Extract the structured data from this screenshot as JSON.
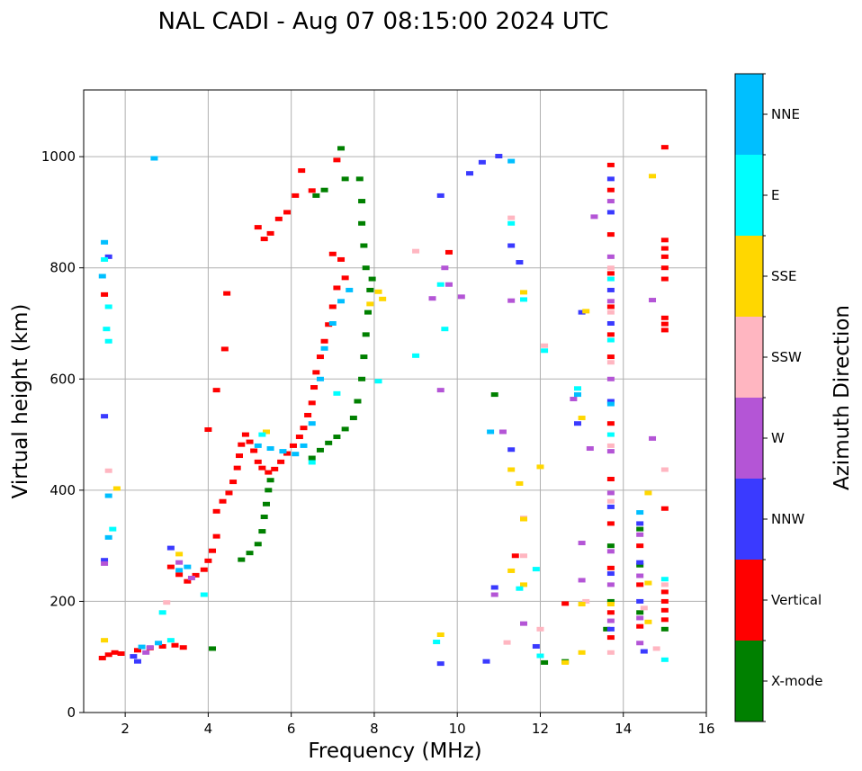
{
  "chart_data": {
    "type": "scatter",
    "title": "NAL CADI - Aug 07 08:15:00 2024 UTC",
    "xlabel": "Frequency (MHz)",
    "ylabel": "Virtual height (km)",
    "xlim": [
      1,
      16
    ],
    "ylim": [
      0,
      1120
    ],
    "xticks": [
      2,
      4,
      6,
      8,
      10,
      12,
      14,
      16
    ],
    "yticks": [
      0,
      200,
      400,
      600,
      800,
      1000
    ],
    "grid": true,
    "colorbar": {
      "label": "Azimuth Direction",
      "position": "right",
      "categories": [
        {
          "name": "X-mode",
          "color": "#008000"
        },
        {
          "name": "Vertical",
          "color": "#ff0000"
        },
        {
          "name": "NNW",
          "color": "#3a3aff"
        },
        {
          "name": "W",
          "color": "#b455d6"
        },
        {
          "name": "SSW",
          "color": "#ffb6c1"
        },
        {
          "name": "SSE",
          "color": "#ffd700"
        },
        {
          "name": "E",
          "color": "#00ffff"
        },
        {
          "name": "NNE",
          "color": "#00bfff"
        }
      ]
    },
    "series": [
      {
        "name": "Vertical",
        "points": [
          [
            1.45,
            98
          ],
          [
            1.6,
            104
          ],
          [
            1.75,
            108
          ],
          [
            1.9,
            106
          ],
          [
            2.3,
            112
          ],
          [
            2.6,
            116
          ],
          [
            2.9,
            119
          ],
          [
            3.2,
            121
          ],
          [
            3.4,
            117
          ],
          [
            1.5,
            752
          ],
          [
            3.1,
            262
          ],
          [
            3.3,
            248
          ],
          [
            3.5,
            236
          ],
          [
            3.7,
            247
          ],
          [
            3.9,
            257
          ],
          [
            4.0,
            273
          ],
          [
            4.1,
            291
          ],
          [
            4.2,
            317
          ],
          [
            4.2,
            362
          ],
          [
            4.35,
            380
          ],
          [
            4.5,
            395
          ],
          [
            4.6,
            415
          ],
          [
            4.7,
            440
          ],
          [
            4.75,
            462
          ],
          [
            4.8,
            482
          ],
          [
            4.9,
            500
          ],
          [
            5.0,
            487
          ],
          [
            5.1,
            471
          ],
          [
            5.2,
            451
          ],
          [
            5.3,
            440
          ],
          [
            5.45,
            432
          ],
          [
            5.6,
            438
          ],
          [
            5.75,
            451
          ],
          [
            5.9,
            466
          ],
          [
            6.05,
            480
          ],
          [
            6.2,
            496
          ],
          [
            6.3,
            512
          ],
          [
            6.4,
            535
          ],
          [
            6.5,
            557
          ],
          [
            6.55,
            585
          ],
          [
            6.6,
            612
          ],
          [
            6.7,
            640
          ],
          [
            6.8,
            668
          ],
          [
            6.9,
            698
          ],
          [
            7.0,
            730
          ],
          [
            7.1,
            764
          ],
          [
            7.0,
            825
          ],
          [
            7.2,
            815
          ],
          [
            7.3,
            782
          ],
          [
            7.1,
            994
          ],
          [
            5.2,
            873
          ],
          [
            5.35,
            852
          ],
          [
            5.5,
            862
          ],
          [
            5.7,
            888
          ],
          [
            5.9,
            900
          ],
          [
            6.1,
            930
          ],
          [
            6.25,
            975
          ],
          [
            6.5,
            939
          ],
          [
            4.0,
            509
          ],
          [
            4.2,
            580
          ],
          [
            4.4,
            654
          ],
          [
            4.45,
            754
          ],
          [
            11.4,
            282
          ],
          [
            12.6,
            196
          ],
          [
            13.7,
            135
          ],
          [
            13.7,
            180
          ],
          [
            13.7,
            260
          ],
          [
            13.7,
            340
          ],
          [
            13.7,
            420
          ],
          [
            13.7,
            520
          ],
          [
            13.7,
            640
          ],
          [
            13.7,
            680
          ],
          [
            13.7,
            730
          ],
          [
            13.7,
            790
          ],
          [
            13.7,
            860
          ],
          [
            13.7,
            940
          ],
          [
            13.7,
            985
          ],
          [
            14.4,
            155
          ],
          [
            14.4,
            230
          ],
          [
            14.4,
            300
          ],
          [
            15.0,
            167
          ],
          [
            15.0,
            184
          ],
          [
            15.0,
            200
          ],
          [
            15.0,
            217
          ],
          [
            15.0,
            367
          ],
          [
            15.0,
            688
          ],
          [
            15.0,
            699
          ],
          [
            15.0,
            710
          ],
          [
            15.0,
            780
          ],
          [
            15.0,
            800
          ],
          [
            15.0,
            820
          ],
          [
            15.0,
            835
          ],
          [
            15.0,
            850
          ],
          [
            15.0,
            1017
          ],
          [
            9.8,
            828
          ]
        ]
      },
      {
        "name": "X-mode",
        "points": [
          [
            4.1,
            115
          ],
          [
            4.8,
            275
          ],
          [
            5.0,
            287
          ],
          [
            5.2,
            303
          ],
          [
            5.3,
            326
          ],
          [
            5.35,
            352
          ],
          [
            5.4,
            375
          ],
          [
            5.45,
            400
          ],
          [
            5.5,
            418
          ],
          [
            6.5,
            458
          ],
          [
            6.7,
            472
          ],
          [
            6.9,
            485
          ],
          [
            7.1,
            496
          ],
          [
            7.3,
            510
          ],
          [
            7.5,
            530
          ],
          [
            7.6,
            560
          ],
          [
            7.7,
            600
          ],
          [
            7.75,
            640
          ],
          [
            7.8,
            680
          ],
          [
            7.85,
            720
          ],
          [
            7.9,
            760
          ],
          [
            7.95,
            780
          ],
          [
            7.8,
            800
          ],
          [
            7.75,
            840
          ],
          [
            7.7,
            880
          ],
          [
            7.7,
            920
          ],
          [
            7.65,
            960
          ],
          [
            7.2,
            1015
          ],
          [
            6.6,
            930
          ],
          [
            6.8,
            940
          ],
          [
            7.3,
            960
          ],
          [
            12.1,
            90
          ],
          [
            12.6,
            92
          ],
          [
            13.6,
            150
          ],
          [
            13.7,
            200
          ],
          [
            13.7,
            300
          ],
          [
            14.4,
            180
          ],
          [
            14.4,
            265
          ],
          [
            14.4,
            330
          ],
          [
            15.0,
            150
          ],
          [
            10.9,
            572
          ]
        ]
      },
      {
        "name": "NNW",
        "points": [
          [
            1.5,
            274
          ],
          [
            1.5,
            533
          ],
          [
            1.6,
            820
          ],
          [
            2.3,
            92
          ],
          [
            2.2,
            101
          ],
          [
            3.1,
            296
          ],
          [
            9.6,
            88
          ],
          [
            9.6,
            930
          ],
          [
            10.7,
            92
          ],
          [
            10.9,
            225
          ],
          [
            11.0,
            1001
          ],
          [
            11.3,
            473
          ],
          [
            11.3,
            840
          ],
          [
            11.5,
            810
          ],
          [
            11.9,
            119
          ],
          [
            12.9,
            520
          ],
          [
            13.0,
            720
          ],
          [
            13.7,
            150
          ],
          [
            13.7,
            250
          ],
          [
            13.7,
            370
          ],
          [
            13.7,
            560
          ],
          [
            13.7,
            700
          ],
          [
            13.7,
            760
          ],
          [
            13.7,
            900
          ],
          [
            13.7,
            960
          ],
          [
            14.4,
            200
          ],
          [
            14.4,
            270
          ],
          [
            14.4,
            340
          ],
          [
            14.5,
            110
          ],
          [
            10.3,
            970
          ],
          [
            10.6,
            990
          ]
        ]
      },
      {
        "name": "W",
        "points": [
          [
            1.5,
            268
          ],
          [
            2.5,
            108
          ],
          [
            2.6,
            117
          ],
          [
            3.3,
            270
          ],
          [
            3.6,
            242
          ],
          [
            9.6,
            580
          ],
          [
            9.7,
            800
          ],
          [
            9.8,
            770
          ],
          [
            10.1,
            748
          ],
          [
            10.9,
            212
          ],
          [
            11.1,
            505
          ],
          [
            11.3,
            741
          ],
          [
            11.6,
            160
          ],
          [
            12.8,
            564
          ],
          [
            13.0,
            238
          ],
          [
            13.0,
            305
          ],
          [
            13.2,
            475
          ],
          [
            13.3,
            892
          ],
          [
            13.7,
            165
          ],
          [
            13.7,
            230
          ],
          [
            13.7,
            290
          ],
          [
            13.7,
            395
          ],
          [
            13.7,
            470
          ],
          [
            13.7,
            600
          ],
          [
            13.7,
            740
          ],
          [
            13.7,
            820
          ],
          [
            13.7,
            920
          ],
          [
            14.4,
            125
          ],
          [
            14.4,
            170
          ],
          [
            14.4,
            246
          ],
          [
            14.4,
            320
          ],
          [
            14.7,
            493
          ],
          [
            14.7,
            742
          ],
          [
            9.4,
            745
          ]
        ]
      },
      {
        "name": "SSW",
        "points": [
          [
            1.6,
            435
          ],
          [
            3.0,
            198
          ],
          [
            9.0,
            830
          ],
          [
            11.2,
            126
          ],
          [
            11.3,
            890
          ],
          [
            11.6,
            282
          ],
          [
            12.0,
            150
          ],
          [
            12.1,
            660
          ],
          [
            13.1,
            200
          ],
          [
            13.7,
            108
          ],
          [
            13.7,
            380
          ],
          [
            13.7,
            480
          ],
          [
            13.7,
            630
          ],
          [
            13.7,
            720
          ],
          [
            13.7,
            800
          ],
          [
            14.5,
            188
          ],
          [
            14.8,
            115
          ],
          [
            15.0,
            437
          ],
          [
            15.0,
            230
          ],
          [
            11.6,
            350
          ]
        ]
      },
      {
        "name": "SSE",
        "points": [
          [
            1.5,
            130
          ],
          [
            1.8,
            403
          ],
          [
            3.3,
            285
          ],
          [
            9.6,
            140
          ],
          [
            11.3,
            255
          ],
          [
            11.3,
            437
          ],
          [
            11.5,
            412
          ],
          [
            11.6,
            348
          ],
          [
            11.6,
            230
          ],
          [
            11.6,
            756
          ],
          [
            12.0,
            442
          ],
          [
            12.6,
            90
          ],
          [
            13.0,
            108
          ],
          [
            13.0,
            195
          ],
          [
            13.0,
            530
          ],
          [
            13.1,
            722
          ],
          [
            13.7,
            195
          ],
          [
            14.6,
            163
          ],
          [
            14.6,
            233
          ],
          [
            14.6,
            395
          ],
          [
            14.7,
            965
          ],
          [
            8.1,
            757
          ],
          [
            8.2,
            744
          ],
          [
            5.4,
            505
          ],
          [
            7.9,
            735
          ]
        ]
      },
      {
        "name": "E",
        "points": [
          [
            1.5,
            815
          ],
          [
            1.55,
            690
          ],
          [
            1.6,
            668
          ],
          [
            1.6,
            730
          ],
          [
            1.7,
            330
          ],
          [
            2.9,
            180
          ],
          [
            3.1,
            130
          ],
          [
            3.9,
            212
          ],
          [
            9.5,
            127
          ],
          [
            9.0,
            642
          ],
          [
            9.6,
            770
          ],
          [
            9.7,
            690
          ],
          [
            11.3,
            880
          ],
          [
            11.5,
            223
          ],
          [
            11.6,
            743
          ],
          [
            11.9,
            258
          ],
          [
            12.0,
            102
          ],
          [
            12.1,
            651
          ],
          [
            12.9,
            583
          ],
          [
            13.7,
            500
          ],
          [
            13.7,
            670
          ],
          [
            13.7,
            780
          ],
          [
            15.0,
            95
          ],
          [
            15.0,
            240
          ],
          [
            5.3,
            500
          ],
          [
            6.5,
            450
          ],
          [
            7.1,
            574
          ],
          [
            8.1,
            596
          ]
        ]
      },
      {
        "name": "NNE",
        "points": [
          [
            1.45,
            785
          ],
          [
            1.5,
            846
          ],
          [
            1.6,
            390
          ],
          [
            1.6,
            315
          ],
          [
            2.4,
            118
          ],
          [
            2.8,
            125
          ],
          [
            3.3,
            256
          ],
          [
            3.5,
            262
          ],
          [
            5.2,
            480
          ],
          [
            5.5,
            475
          ],
          [
            5.8,
            470
          ],
          [
            6.1,
            465
          ],
          [
            6.3,
            480
          ],
          [
            6.5,
            520
          ],
          [
            6.7,
            600
          ],
          [
            6.8,
            655
          ],
          [
            7.0,
            700
          ],
          [
            7.2,
            740
          ],
          [
            7.4,
            760
          ],
          [
            11.3,
            992
          ],
          [
            12.9,
            572
          ],
          [
            13.7,
            555
          ],
          [
            14.4,
            360
          ],
          [
            2.7,
            997
          ],
          [
            10.8,
            505
          ]
        ]
      }
    ]
  }
}
